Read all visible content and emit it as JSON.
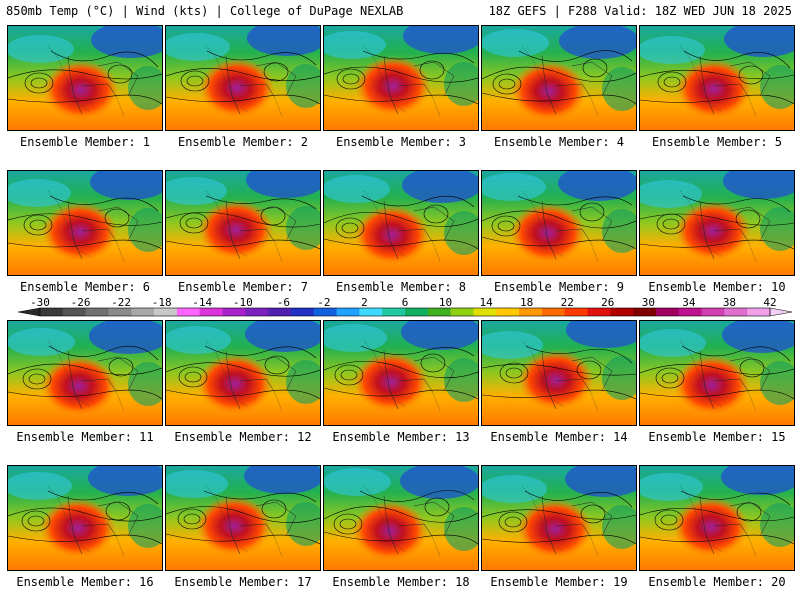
{
  "header": {
    "left": "850mb Temp (°C) | Wind (kts) | College of DuPage NEXLAB",
    "right": "18Z GEFS | F288 Valid: 18Z WED JUN 18 2025"
  },
  "members": [
    "Ensemble Member: 1",
    "Ensemble Member: 2",
    "Ensemble Member: 3",
    "Ensemble Member: 4",
    "Ensemble Member: 5",
    "Ensemble Member: 6",
    "Ensemble Member: 7",
    "Ensemble Member: 8",
    "Ensemble Member: 9",
    "Ensemble Member: 10",
    "Ensemble Member: 11",
    "Ensemble Member: 12",
    "Ensemble Member: 13",
    "Ensemble Member: 14",
    "Ensemble Member: 15",
    "Ensemble Member: 16",
    "Ensemble Member: 17",
    "Ensemble Member: 18",
    "Ensemble Member: 19",
    "Ensemble Member: 20"
  ],
  "colorbar": {
    "tick_labels": [
      "-30",
      "-26",
      "-22",
      "-18",
      "-14",
      "-10",
      "-6",
      "-2",
      "2",
      "6",
      "10",
      "14",
      "18",
      "22",
      "26",
      "30",
      "34",
      "38",
      "42"
    ],
    "colors": [
      "#3a3a3a",
      "#555555",
      "#707070",
      "#8a8a8a",
      "#a8a8a8",
      "#c8c8c8",
      "#ff66ff",
      "#dd33dd",
      "#aa22cc",
      "#7a1fc0",
      "#5020b0",
      "#2030c8",
      "#1060e0",
      "#20a0ff",
      "#40d8ff",
      "#20c8a0",
      "#10b060",
      "#40b020",
      "#90d010",
      "#e0e000",
      "#ffc800",
      "#ff9800",
      "#ff6a00",
      "#ff3a00",
      "#e01010",
      "#b00000",
      "#800000",
      "#a00060",
      "#c01090",
      "#d040b0",
      "#e070d0",
      "#f0a0e8"
    ]
  }
}
